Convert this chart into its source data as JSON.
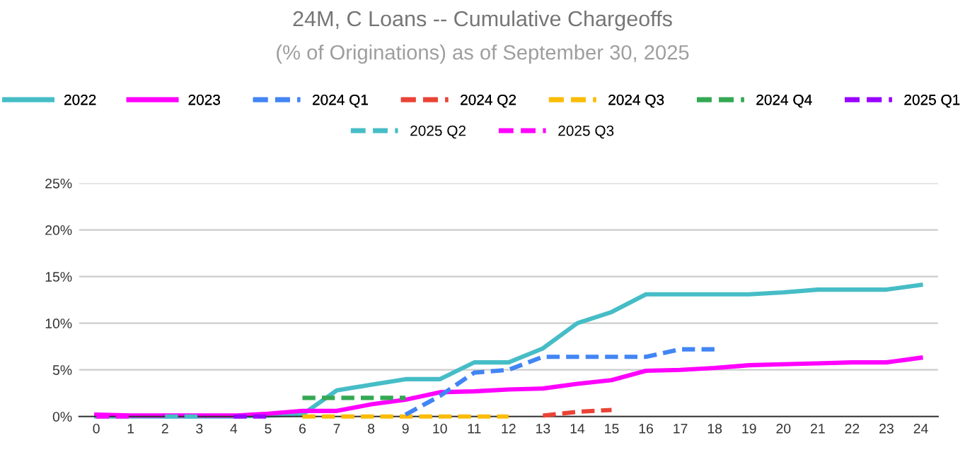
{
  "chart_data": {
    "type": "line",
    "title": "24M, C Loans -- Cumulative Chargeoffs",
    "subtitle": "(% of Originations) as of September 30, 2025",
    "categories": [
      "0",
      "1",
      "2",
      "3",
      "4",
      "5",
      "6",
      "7",
      "8",
      "9",
      "10",
      "11",
      "12",
      "13",
      "14",
      "15",
      "16",
      "17",
      "18",
      "19",
      "20",
      "21",
      "22",
      "23",
      "24"
    ],
    "series": [
      {
        "name": "2022",
        "color": "#46bdc6",
        "line_style": "solid",
        "values": [
          0,
          0,
          0,
          0,
          0,
          0.1,
          0.2,
          2.8,
          3.4,
          4.0,
          4.0,
          5.8,
          5.8,
          7.3,
          10.0,
          11.2,
          13.1,
          13.1,
          13.1,
          13.1,
          13.3,
          13.6,
          13.6,
          13.6,
          14.1
        ]
      },
      {
        "name": "2023",
        "color": "#ff00ff",
        "line_style": "solid",
        "values": [
          0.2,
          0.1,
          0.1,
          0.1,
          0.1,
          0.3,
          0.6,
          0.6,
          1.3,
          1.8,
          2.6,
          2.7,
          2.9,
          3.0,
          3.5,
          3.9,
          4.9,
          5.0,
          5.2,
          5.5,
          5.6,
          5.7,
          5.8,
          5.8,
          6.3
        ]
      },
      {
        "name": "2024 Q1",
        "color": "#4285f4",
        "line_style": "dashed",
        "values": [
          null,
          null,
          null,
          null,
          null,
          null,
          null,
          null,
          null,
          0.2,
          2.2,
          4.7,
          5.0,
          6.4,
          6.4,
          6.4,
          6.4,
          7.2,
          7.2,
          null,
          null,
          null,
          null,
          null,
          null
        ]
      },
      {
        "name": "2024 Q2",
        "color": "#ea4335",
        "line_style": "dashed",
        "values": [
          null,
          null,
          null,
          null,
          null,
          null,
          null,
          null,
          null,
          null,
          null,
          null,
          null,
          0.1,
          0.5,
          0.7,
          null,
          null,
          null,
          null,
          null,
          null,
          null,
          null,
          null
        ]
      },
      {
        "name": "2024 Q3",
        "color": "#fbbc04",
        "line_style": "dashed",
        "values": [
          null,
          null,
          null,
          null,
          null,
          null,
          0,
          0,
          0,
          0,
          0,
          0,
          0,
          null,
          null,
          null,
          null,
          null,
          null,
          null,
          null,
          null,
          null,
          null,
          null
        ]
      },
      {
        "name": "2024 Q4",
        "color": "#34a853",
        "line_style": "dashed",
        "values": [
          null,
          null,
          null,
          null,
          null,
          null,
          2.0,
          2.0,
          2.0,
          2.0,
          null,
          null,
          null,
          null,
          null,
          null,
          null,
          null,
          null,
          null,
          null,
          null,
          null,
          null,
          null
        ]
      },
      {
        "name": "2025 Q1",
        "color": "#9900ff",
        "line_style": "dashed",
        "values": [
          null,
          null,
          null,
          null,
          0,
          0,
          null,
          null,
          null,
          null,
          null,
          null,
          null,
          null,
          null,
          null,
          null,
          null,
          null,
          null,
          null,
          null,
          null,
          null,
          null
        ]
      },
      {
        "name": "2025 Q2",
        "color": "#46bdc6",
        "line_style": "dashed",
        "values": [
          null,
          null,
          0,
          0,
          null,
          null,
          null,
          null,
          null,
          null,
          null,
          null,
          null,
          null,
          null,
          null,
          null,
          null,
          null,
          null,
          null,
          null,
          null,
          null,
          null
        ]
      },
      {
        "name": "2025 Q3",
        "color": "#ff00ff",
        "line_style": "dashed",
        "values": [
          0,
          0,
          null,
          null,
          null,
          null,
          null,
          null,
          null,
          null,
          null,
          null,
          null,
          null,
          null,
          null,
          null,
          null,
          null,
          null,
          null,
          null,
          null,
          null,
          null
        ]
      }
    ],
    "ylim": [
      0,
      25
    ],
    "yticks": [
      {
        "value": 0,
        "label": "0%"
      },
      {
        "value": 5,
        "label": "5%"
      },
      {
        "value": 10,
        "label": "10%"
      },
      {
        "value": 15,
        "label": "15%"
      },
      {
        "value": 20,
        "label": "20%"
      },
      {
        "value": 25,
        "label": "25%"
      }
    ],
    "grid": "y",
    "legend": "top"
  }
}
